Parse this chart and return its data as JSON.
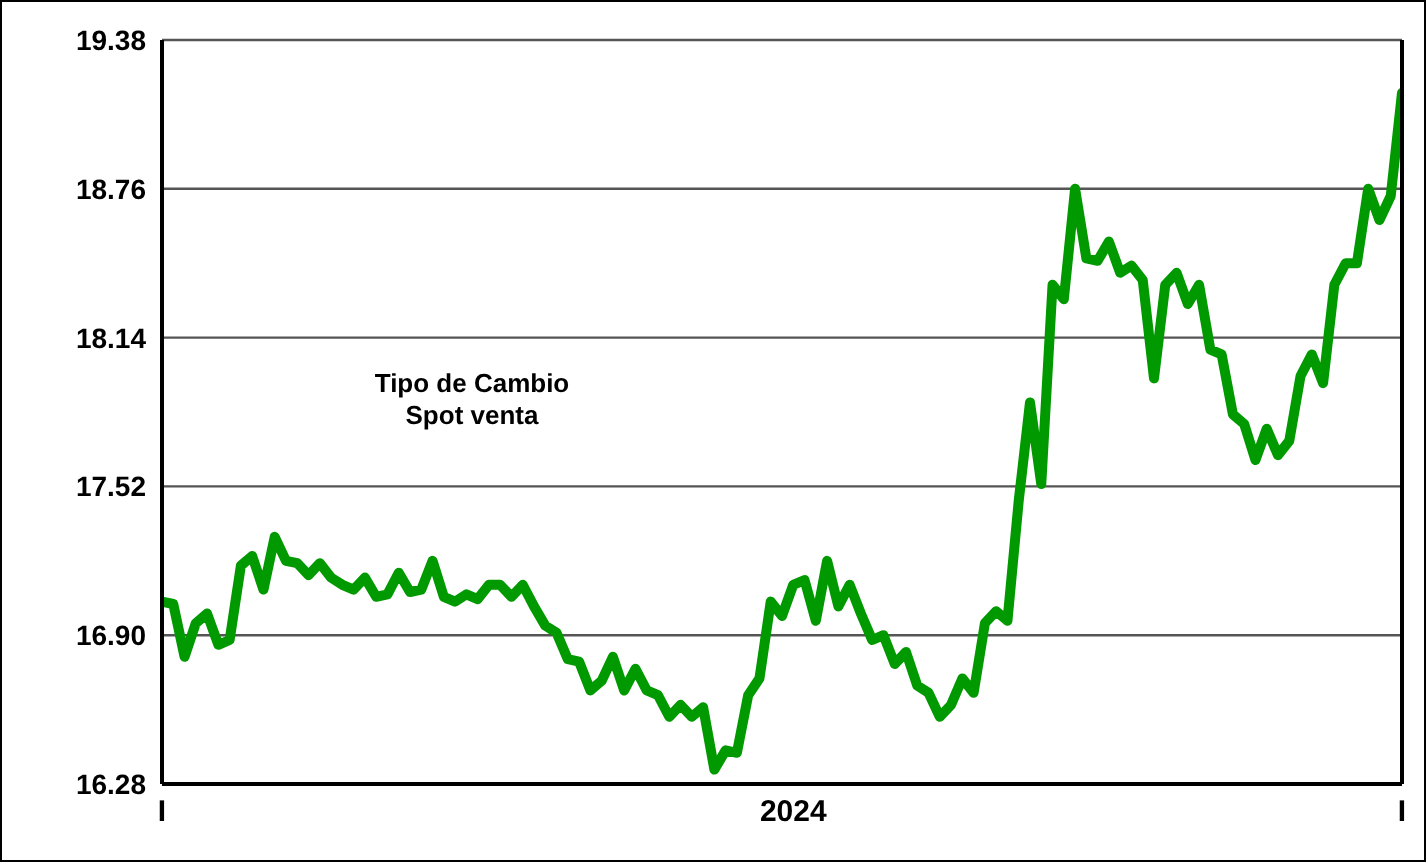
{
  "chart_data": {
    "type": "line",
    "annotations": [
      "Tipo de Cambio\nSpot venta"
    ],
    "categories": [
      "I",
      null,
      null,
      null,
      null,
      null,
      null,
      null,
      null,
      null,
      null,
      null,
      null,
      null,
      null,
      null,
      null,
      null,
      null,
      null,
      null,
      null,
      null,
      null,
      null,
      null,
      null,
      null,
      null,
      null,
      null,
      null,
      null,
      null,
      null,
      null,
      null,
      null,
      null,
      null,
      null,
      null,
      null,
      null,
      null,
      null,
      null,
      null,
      null,
      null,
      null,
      null,
      null,
      null,
      null,
      null,
      "2024",
      null,
      null,
      null,
      null,
      null,
      null,
      null,
      null,
      null,
      null,
      null,
      null,
      null,
      null,
      null,
      null,
      null,
      null,
      null,
      null,
      null,
      null,
      null,
      null,
      null,
      null,
      null,
      null,
      null,
      null,
      null,
      null,
      null,
      null,
      null,
      null,
      null,
      null,
      null,
      null,
      null,
      null,
      null,
      null,
      null,
      null,
      null,
      null,
      null,
      null,
      null,
      null,
      null,
      "I"
    ],
    "series": [
      {
        "color": "#009900",
        "values": [
          17.04,
          17.03,
          16.81,
          16.95,
          16.99,
          16.86,
          16.88,
          17.19,
          17.23,
          17.09,
          17.31,
          17.21,
          17.2,
          17.15,
          17.2,
          17.14,
          17.11,
          17.09,
          17.14,
          17.06,
          17.07,
          17.16,
          17.08,
          17.09,
          17.21,
          17.06,
          17.04,
          17.07,
          17.05,
          17.11,
          17.11,
          17.06,
          17.11,
          17.02,
          16.94,
          16.91,
          16.8,
          16.79,
          16.67,
          16.71,
          16.81,
          16.67,
          16.76,
          16.67,
          16.65,
          16.56,
          16.61,
          16.56,
          16.6,
          16.34,
          16.42,
          16.41,
          16.65,
          16.72,
          17.04,
          16.98,
          17.11,
          17.13,
          16.96,
          17.21,
          17.02,
          17.11,
          16.99,
          16.88,
          16.9,
          16.78,
          16.83,
          16.69,
          16.66,
          16.56,
          16.61,
          16.72,
          16.66,
          16.95,
          17.0,
          16.96,
          17.46,
          17.87,
          17.53,
          18.36,
          18.3,
          18.76,
          18.47,
          18.46,
          18.54,
          18.41,
          18.44,
          18.38,
          17.97,
          18.36,
          18.41,
          18.28,
          18.36,
          18.09,
          18.07,
          17.82,
          17.78,
          17.63,
          17.76,
          17.65,
          17.71,
          17.98,
          18.07,
          17.95,
          18.36,
          18.45,
          18.45,
          18.76,
          18.63,
          18.73,
          19.16
        ]
      }
    ],
    "ylim": [
      16.28,
      19.38
    ],
    "yticks": [
      16.28,
      {
        "value": 16.9,
        "label": "16.90"
      },
      17.52,
      18.14,
      18.76,
      19.38
    ],
    "grid": "y",
    "marker": "none",
    "line_style": "solid"
  }
}
